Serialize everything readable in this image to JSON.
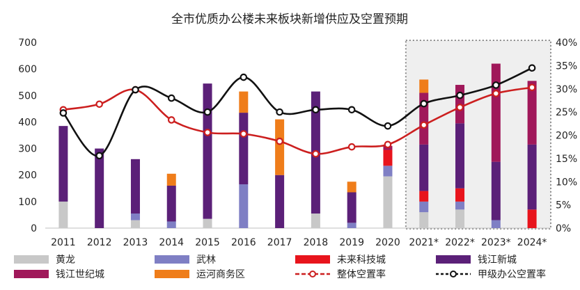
{
  "chart_data": {
    "type": "bar",
    "title": "全市优质办公楼未来板块新增供应及空置预期",
    "categories": [
      "2011",
      "2012",
      "2013",
      "2014",
      "2015",
      "2016",
      "2017",
      "2018",
      "2019",
      "2020",
      "2021*",
      "2022*",
      "2023*",
      "2024*"
    ],
    "ylim": [
      0,
      700
    ],
    "y_ticks": [
      "0",
      "100",
      "200",
      "300",
      "400",
      "500",
      "600",
      "700"
    ],
    "y2lim": [
      0,
      40
    ],
    "y2_ticks": [
      "0%",
      "5%",
      "10%",
      "15%",
      "20%",
      "25%",
      "30%",
      "35%",
      "40%"
    ],
    "forecast_start_index": 10,
    "series": [
      {
        "name": "黄龙",
        "kind": "bar",
        "color": "#c8c8c8",
        "values": [
          100,
          0,
          30,
          0,
          35,
          0,
          0,
          55,
          0,
          195,
          60,
          70,
          0,
          0
        ]
      },
      {
        "name": "武林",
        "kind": "bar",
        "color": "#7f7fc4",
        "values": [
          0,
          0,
          25,
          25,
          0,
          165,
          0,
          0,
          20,
          40,
          40,
          30,
          30,
          0
        ]
      },
      {
        "name": "未来科技城",
        "kind": "bar",
        "color": "#e8141c",
        "values": [
          0,
          0,
          0,
          0,
          0,
          0,
          0,
          0,
          0,
          60,
          40,
          50,
          0,
          70
        ]
      },
      {
        "name": "钱江新城",
        "kind": "bar",
        "color": "#5b2078",
        "values": [
          285,
          300,
          205,
          135,
          510,
          270,
          200,
          460,
          115,
          0,
          175,
          245,
          220,
          245
        ]
      },
      {
        "name": "钱江世纪城",
        "kind": "bar",
        "color": "#a0185a",
        "values": [
          0,
          0,
          0,
          0,
          0,
          0,
          0,
          0,
          0,
          15,
          195,
          145,
          370,
          240
        ]
      },
      {
        "name": "运河商务区",
        "kind": "bar",
        "color": "#ef7d1a",
        "values": [
          0,
          0,
          0,
          45,
          0,
          80,
          210,
          0,
          40,
          0,
          50,
          0,
          0,
          0
        ]
      },
      {
        "name": "整体空置率",
        "kind": "line",
        "axis": "right",
        "color": "#cc1f1f",
        "unit": "%",
        "values": [
          25.5,
          26.7,
          29.8,
          23.3,
          20.6,
          20.3,
          18.7,
          16.0,
          17.5,
          18.0,
          22.2,
          26.0,
          29.0,
          30.3
        ]
      },
      {
        "name": "甲级办公空置率",
        "kind": "line",
        "axis": "right",
        "color": "#111111",
        "unit": "%",
        "values": [
          24.8,
          15.6,
          29.8,
          28.0,
          25.0,
          32.5,
          25.0,
          25.5,
          25.5,
          22.0,
          26.8,
          28.6,
          30.8,
          34.5
        ]
      }
    ]
  }
}
